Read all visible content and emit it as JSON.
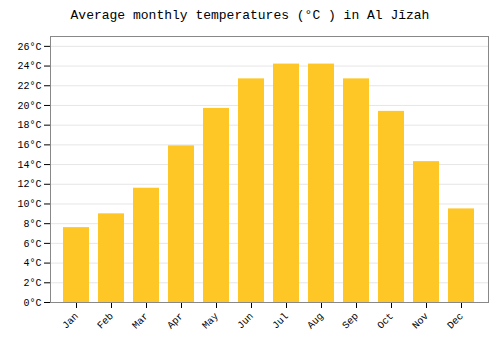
{
  "chart_data": {
    "type": "bar",
    "title": "Average monthly temperatures (°C ) in Al Jīzah",
    "categories": [
      "Jan",
      "Feb",
      "Mar",
      "Apr",
      "May",
      "Jun",
      "Jul",
      "Aug",
      "Sep",
      "Oct",
      "Nov",
      "Dec"
    ],
    "values": [
      7.6,
      9.0,
      11.6,
      15.9,
      19.7,
      22.7,
      24.2,
      24.2,
      22.7,
      19.4,
      14.3,
      9.5
    ],
    "color": "#FFC726",
    "ylim": [
      0,
      27
    ],
    "yticks": [
      {
        "value": 0,
        "label": "0°C"
      },
      {
        "value": 2,
        "label": "2°C"
      },
      {
        "value": 4,
        "label": "4°C"
      },
      {
        "value": 6,
        "label": "6°C"
      },
      {
        "value": 8,
        "label": "8°C"
      },
      {
        "value": 10,
        "label": "10°C"
      },
      {
        "value": 12,
        "label": "12°C"
      },
      {
        "value": 14,
        "label": "14°C"
      },
      {
        "value": 16,
        "label": "16°C"
      },
      {
        "value": 18,
        "label": "18°C"
      },
      {
        "value": 20,
        "label": "20°C"
      },
      {
        "value": 22,
        "label": "22°C"
      },
      {
        "value": 24,
        "label": "24°C"
      },
      {
        "value": 26,
        "label": "26°C"
      }
    ],
    "grid": true
  }
}
